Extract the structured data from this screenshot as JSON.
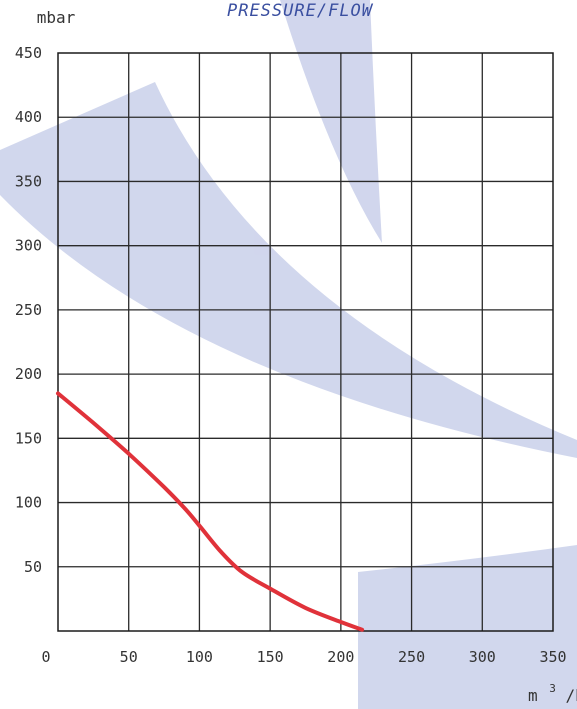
{
  "chart_data": {
    "type": "line",
    "title": "PRESSURE/FLOW",
    "ylabel": "mbar",
    "xlabel_base": "m",
    "xlabel_sup": "3",
    "xlabel_tail": "/h",
    "xlim": [
      0,
      350
    ],
    "ylim": [
      0,
      450
    ],
    "x_ticks": [
      "0",
      "50",
      "100",
      "150",
      "200",
      "250",
      "300",
      "350"
    ],
    "y_ticks": [
      "50",
      "100",
      "150",
      "200",
      "250",
      "300",
      "350",
      "400",
      "450"
    ],
    "grid": true,
    "line_color": "#e0323a",
    "series": [
      {
        "x": [
          0,
          25,
          50,
          75,
          90,
          100,
          115,
          130,
          150,
          175,
          200,
          215
        ],
        "y": [
          185,
          162,
          138,
          112,
          95,
          82,
          62,
          46,
          33,
          18,
          7,
          1
        ]
      }
    ]
  }
}
